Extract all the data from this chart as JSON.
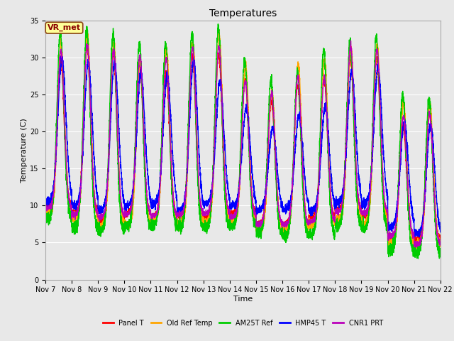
{
  "title": "Temperatures",
  "xlabel": "Time",
  "ylabel": "Temperature (C)",
  "annotation_text": "VR_met",
  "annotation_bg": "#ffff99",
  "annotation_border": "#8B4513",
  "annotation_text_color": "#8B0000",
  "ylim": [
    0,
    35
  ],
  "xlim_start": 7,
  "xlim_end": 22,
  "x_tick_labels": [
    "Nov 7",
    "Nov 8",
    "Nov 9",
    "Nov 10",
    "Nov 11",
    "Nov 12",
    "Nov 13",
    "Nov 14",
    "Nov 15",
    "Nov 16",
    "Nov 17",
    "Nov 18",
    "Nov 19",
    "Nov 20",
    "Nov 21",
    "Nov 22"
  ],
  "series_names": [
    "Panel T",
    "Old Ref Temp",
    "AM25T Ref",
    "HMP45 T",
    "CNR1 PRT"
  ],
  "series_colors": [
    "#ff0000",
    "#ffa500",
    "#00cc00",
    "#0000ff",
    "#bb00bb"
  ],
  "series_lw": [
    1.0,
    1.0,
    1.0,
    1.0,
    1.0
  ],
  "fig_facecolor": "#e8e8e8",
  "ax_facecolor": "#e8e8e8",
  "grid_color": "#ffffff",
  "grid_lw": 0.8,
  "title_fontsize": 10,
  "label_fontsize": 8,
  "tick_fontsize": 7,
  "legend_fontsize": 7
}
